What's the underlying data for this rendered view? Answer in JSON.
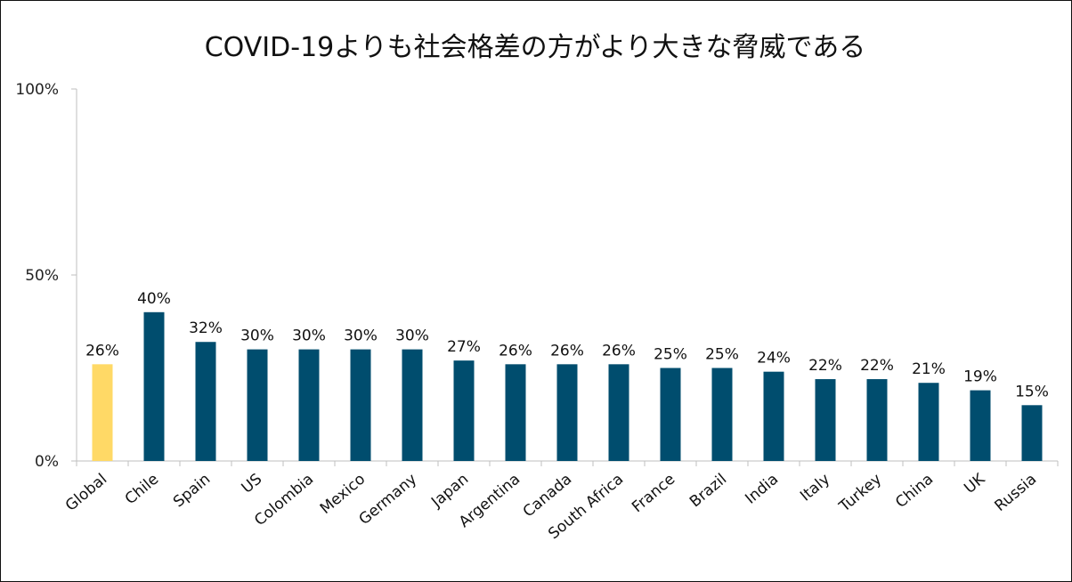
{
  "chart_data": {
    "type": "bar",
    "title": "COVID-19よりも社会格差の方がより大きな脅威である",
    "xlabel": "",
    "ylabel": "",
    "ylim": [
      0,
      100
    ],
    "yticks": [
      0,
      50,
      100
    ],
    "ytick_labels": [
      "0%",
      "50%",
      "100%"
    ],
    "grid": false,
    "categories": [
      "Global",
      "Chile",
      "Spain",
      "US",
      "Colombia",
      "Mexico",
      "Germany",
      "Japan",
      "Argentina",
      "Canada",
      "South Africa",
      "France",
      "Brazil",
      "India",
      "Italy",
      "Turkey",
      "China",
      "UK",
      "Russia"
    ],
    "values": [
      26,
      40,
      32,
      30,
      30,
      30,
      30,
      27,
      26,
      26,
      26,
      25,
      25,
      24,
      22,
      22,
      21,
      19,
      15
    ],
    "data_labels": [
      "26%",
      "40%",
      "32%",
      "30%",
      "30%",
      "30%",
      "30%",
      "27%",
      "26%",
      "26%",
      "26%",
      "25%",
      "25%",
      "24%",
      "22%",
      "22%",
      "21%",
      "19%",
      "15%"
    ],
    "colors": {
      "highlight": "#FFD966",
      "default": "#004D6E",
      "axis": "#BFBFBF"
    },
    "highlight_category": "Global"
  }
}
